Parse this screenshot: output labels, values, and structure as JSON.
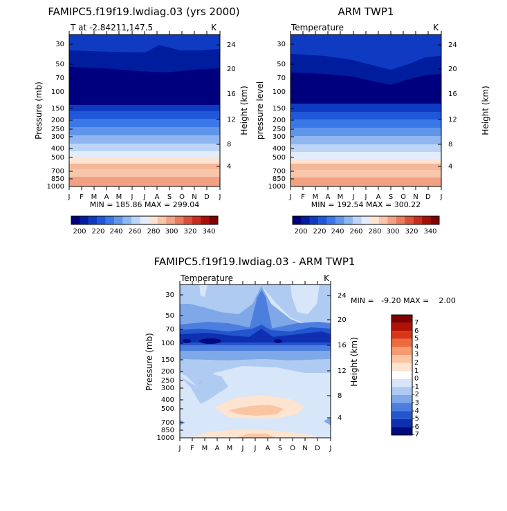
{
  "chart_data": [
    {
      "type": "heatmap",
      "title": "FAMIPC5.f19f19.lwdiag.03 (yrs 2000)",
      "subtitle_left": "T at -2.84211,147.5",
      "units": "K",
      "ylabel": "Pressure (mb)",
      "ylabel_right": "Height (km)",
      "stats": "MIN = 185.86 MAX = 299.04",
      "pressure_ticks": [
        "30",
        "50",
        "70",
        "100",
        "150",
        "200",
        "250",
        "300",
        "400",
        "500",
        "700",
        "850",
        "1000"
      ],
      "height_ticks": [
        "24",
        "20",
        "16",
        "12",
        "8",
        "4"
      ],
      "months": [
        "J",
        "F",
        "M",
        "A",
        "M",
        "J",
        "J",
        "A",
        "S",
        "O",
        "N",
        "D",
        "J"
      ],
      "levels": [
        "200",
        "220",
        "240",
        "260",
        "280",
        "300",
        "320",
        "340"
      ],
      "ylim": [
        1000,
        30
      ]
    },
    {
      "type": "heatmap",
      "title": "ARM TWP1",
      "subtitle_left": "Temperature",
      "units": "K",
      "ylabel": "pressure level",
      "ylabel_right": "Height (km)",
      "stats": "MIN = 192.54 MAX = 300.22",
      "pressure_ticks": [
        "30",
        "50",
        "70",
        "100",
        "150",
        "200",
        "250",
        "300",
        "400",
        "500",
        "700",
        "850",
        "1000"
      ],
      "height_ticks": [
        "24",
        "20",
        "16",
        "12",
        "8",
        "4"
      ],
      "months": [
        "J",
        "F",
        "M",
        "A",
        "M",
        "J",
        "J",
        "A",
        "S",
        "O",
        "N",
        "D",
        "J"
      ],
      "levels": [
        "200",
        "220",
        "240",
        "260",
        "280",
        "300",
        "320",
        "340"
      ],
      "ylim": [
        1000,
        30
      ]
    },
    {
      "type": "heatmap",
      "title": "FAMIPC5.f19f19.lwdiag.03 - ARM TWP1",
      "subtitle_left": "Temperature",
      "units": "K",
      "ylabel": "Pressure (mb)",
      "ylabel_right": "Height (km)",
      "stats": "MIN =   -9.20 MAX =    2.00",
      "pressure_ticks": [
        "30",
        "50",
        "70",
        "100",
        "150",
        "200",
        "250",
        "300",
        "400",
        "500",
        "700",
        "850",
        "1000"
      ],
      "height_ticks": [
        "24",
        "20",
        "16",
        "12",
        "8",
        "4"
      ],
      "months": [
        "J",
        "F",
        "M",
        "A",
        "M",
        "J",
        "J",
        "A",
        "S",
        "O",
        "N",
        "D",
        "J"
      ],
      "levels": [
        "7",
        "6",
        "5",
        "4",
        "3",
        "2",
        "1",
        "0",
        "-1",
        "-2",
        "-3",
        "-4",
        "-5",
        "-6",
        "-7"
      ],
      "ylim": [
        1000,
        30
      ]
    }
  ],
  "colors": {
    "temp_scale": [
      "#00007f",
      "#001d9e",
      "#0f3bc2",
      "#1f57d8",
      "#3a78e8",
      "#6095ec",
      "#8fb6f1",
      "#bcd4f6",
      "#e2ecfb",
      "#fde4d2",
      "#f8c6ab",
      "#f2a283",
      "#e97b5e",
      "#da5139",
      "#c72d1c",
      "#a80f0a",
      "#7f0000"
    ],
    "diff_scale": [
      "#7f0000",
      "#b01207",
      "#d63616",
      "#ec6a3e",
      "#f69a70",
      "#fbc5a3",
      "#fde4d0",
      "#ffffff",
      "#d7e6f8",
      "#afcbf2",
      "#7fa8e8",
      "#4c7fdd",
      "#2355cf",
      "#0d2fb0",
      "#000a7f"
    ]
  }
}
